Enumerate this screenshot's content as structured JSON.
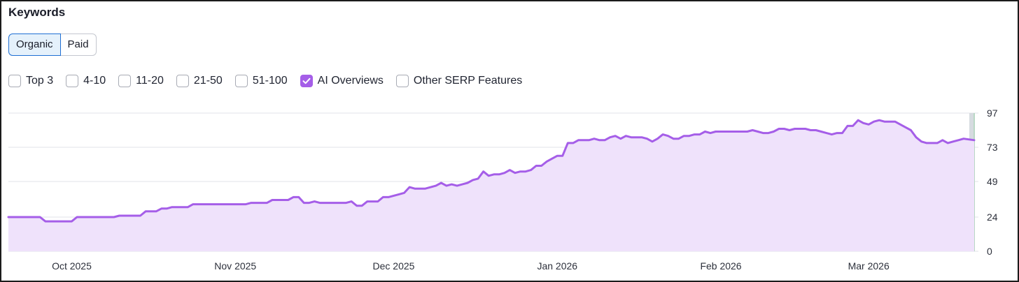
{
  "header": {
    "title": "Keywords"
  },
  "toggle": [
    {
      "label": "Organic",
      "active": true
    },
    {
      "label": "Paid",
      "active": false
    }
  ],
  "filters": [
    {
      "label": "Top 3",
      "checked": false
    },
    {
      "label": "4-10",
      "checked": false
    },
    {
      "label": "11-20",
      "checked": false
    },
    {
      "label": "21-50",
      "checked": false
    },
    {
      "label": "51-100",
      "checked": false
    },
    {
      "label": "AI Overviews",
      "checked": true
    },
    {
      "label": "Other SERP Features",
      "checked": false
    }
  ],
  "colors": {
    "series": "#a55ee8",
    "fill": "#efe2fb",
    "grid": "#e1e3e8",
    "accent": "#1e6fd3"
  },
  "chart_data": {
    "type": "area",
    "x_start": "2025-09-19",
    "x_end": "2026-03-21",
    "yticks": [
      0,
      24,
      49,
      73,
      97
    ],
    "ylim": [
      0,
      97
    ],
    "xticks": [
      {
        "date": "2025-10-01",
        "label": "Oct 2025"
      },
      {
        "date": "2025-11-01",
        "label": "Nov 2025"
      },
      {
        "date": "2025-12-01",
        "label": "Dec 2025"
      },
      {
        "date": "2026-01-01",
        "label": "Jan 2026"
      },
      {
        "date": "2026-02-01",
        "label": "Feb 2026"
      },
      {
        "date": "2026-03-01",
        "label": "Mar 2026"
      }
    ],
    "series": [
      {
        "points": [
          [
            "2025-09-19",
            24
          ],
          [
            "2025-09-25",
            24
          ],
          [
            "2025-09-26",
            21
          ],
          [
            "2025-10-01",
            21
          ],
          [
            "2025-10-02",
            24
          ],
          [
            "2025-10-09",
            24
          ],
          [
            "2025-10-10",
            25
          ],
          [
            "2025-10-14",
            25
          ],
          [
            "2025-10-15",
            28
          ],
          [
            "2025-10-17",
            28
          ],
          [
            "2025-10-18",
            30
          ],
          [
            "2025-10-19",
            30
          ],
          [
            "2025-10-20",
            31
          ],
          [
            "2025-10-23",
            31
          ],
          [
            "2025-10-24",
            33
          ],
          [
            "2025-11-03",
            33
          ],
          [
            "2025-11-04",
            34
          ],
          [
            "2025-11-07",
            34
          ],
          [
            "2025-11-08",
            36
          ],
          [
            "2025-11-11",
            36
          ],
          [
            "2025-11-12",
            38
          ],
          [
            "2025-11-13",
            38
          ],
          [
            "2025-11-14",
            34
          ],
          [
            "2025-11-15",
            34
          ],
          [
            "2025-11-16",
            35
          ],
          [
            "2025-11-17",
            34
          ],
          [
            "2025-11-22",
            34
          ],
          [
            "2025-11-23",
            35
          ],
          [
            "2025-11-24",
            32
          ],
          [
            "2025-11-25",
            32
          ],
          [
            "2025-11-26",
            35
          ],
          [
            "2025-11-28",
            35
          ],
          [
            "2025-11-29",
            38
          ],
          [
            "2025-11-30",
            38
          ],
          [
            "2025-12-01",
            39
          ],
          [
            "2025-12-02",
            40
          ],
          [
            "2025-12-03",
            41
          ],
          [
            "2025-12-04",
            45
          ],
          [
            "2025-12-05",
            44
          ],
          [
            "2025-12-07",
            44
          ],
          [
            "2025-12-09",
            46
          ],
          [
            "2025-12-10",
            48
          ],
          [
            "2025-12-11",
            46
          ],
          [
            "2025-12-12",
            47
          ],
          [
            "2025-12-13",
            46
          ],
          [
            "2025-12-14",
            47
          ],
          [
            "2025-12-15",
            48
          ],
          [
            "2025-12-16",
            50
          ],
          [
            "2025-12-17",
            51
          ],
          [
            "2025-12-18",
            56
          ],
          [
            "2025-12-19",
            53
          ],
          [
            "2025-12-20",
            54
          ],
          [
            "2025-12-21",
            54
          ],
          [
            "2025-12-22",
            55
          ],
          [
            "2025-12-23",
            57
          ],
          [
            "2025-12-24",
            55
          ],
          [
            "2025-12-25",
            56
          ],
          [
            "2025-12-26",
            56
          ],
          [
            "2025-12-27",
            57
          ],
          [
            "2025-12-28",
            60
          ],
          [
            "2025-12-29",
            60
          ],
          [
            "2025-12-30",
            63
          ],
          [
            "2025-12-31",
            65
          ],
          [
            "2026-01-01",
            67
          ],
          [
            "2026-01-02",
            67
          ],
          [
            "2026-01-03",
            76
          ],
          [
            "2026-01-04",
            76
          ],
          [
            "2026-01-05",
            78
          ],
          [
            "2026-01-07",
            78
          ],
          [
            "2026-01-08",
            79
          ],
          [
            "2026-01-09",
            78
          ],
          [
            "2026-01-10",
            78
          ],
          [
            "2026-01-11",
            80
          ],
          [
            "2026-01-12",
            81
          ],
          [
            "2026-01-13",
            79
          ],
          [
            "2026-01-14",
            81
          ],
          [
            "2026-01-15",
            80
          ],
          [
            "2026-01-17",
            80
          ],
          [
            "2026-01-18",
            79
          ],
          [
            "2026-01-19",
            77
          ],
          [
            "2026-01-20",
            79
          ],
          [
            "2026-01-21",
            82
          ],
          [
            "2026-01-22",
            81
          ],
          [
            "2026-01-23",
            79
          ],
          [
            "2026-01-24",
            79
          ],
          [
            "2026-01-25",
            81
          ],
          [
            "2026-01-26",
            81
          ],
          [
            "2026-01-27",
            82
          ],
          [
            "2026-01-28",
            82
          ],
          [
            "2026-01-29",
            84
          ],
          [
            "2026-01-30",
            83
          ],
          [
            "2026-01-31",
            84
          ],
          [
            "2026-02-06",
            84
          ],
          [
            "2026-02-07",
            85
          ],
          [
            "2026-02-08",
            84
          ],
          [
            "2026-02-09",
            83
          ],
          [
            "2026-02-10",
            83
          ],
          [
            "2026-02-11",
            84
          ],
          [
            "2026-02-12",
            86
          ],
          [
            "2026-02-13",
            86
          ],
          [
            "2026-02-14",
            85
          ],
          [
            "2026-02-15",
            86
          ],
          [
            "2026-02-17",
            86
          ],
          [
            "2026-02-18",
            85
          ],
          [
            "2026-02-19",
            85
          ],
          [
            "2026-02-20",
            84
          ],
          [
            "2026-02-21",
            83
          ],
          [
            "2026-02-22",
            82
          ],
          [
            "2026-02-23",
            83
          ],
          [
            "2026-02-24",
            83
          ],
          [
            "2026-02-25",
            88
          ],
          [
            "2026-02-26",
            88
          ],
          [
            "2026-02-27",
            92
          ],
          [
            "2026-02-28",
            90
          ],
          [
            "2026-03-01",
            89
          ],
          [
            "2026-03-02",
            91
          ],
          [
            "2026-03-03",
            92
          ],
          [
            "2026-03-04",
            91
          ],
          [
            "2026-03-06",
            91
          ],
          [
            "2026-03-07",
            89
          ],
          [
            "2026-03-08",
            87
          ],
          [
            "2026-03-09",
            85
          ],
          [
            "2026-03-10",
            80
          ],
          [
            "2026-03-11",
            77
          ],
          [
            "2026-03-12",
            76
          ],
          [
            "2026-03-14",
            76
          ],
          [
            "2026-03-15",
            78
          ],
          [
            "2026-03-16",
            76
          ],
          [
            "2026-03-17",
            77
          ],
          [
            "2026-03-18",
            78
          ],
          [
            "2026-03-19",
            79
          ],
          [
            "2026-03-21",
            78
          ]
        ]
      }
    ]
  }
}
